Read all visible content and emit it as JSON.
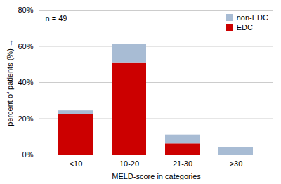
{
  "chart_data": {
    "type": "bar",
    "stacked": true,
    "categories": [
      "<10",
      "10-20",
      "21-30",
      ">30"
    ],
    "series": [
      {
        "name": "EDC",
        "color": "#cc0000",
        "values": [
          22.4,
          51.0,
          6.1,
          0.0
        ]
      },
      {
        "name": "non-EDC",
        "color": "#a8bcd4",
        "values": [
          2.0,
          10.2,
          4.9,
          4.1
        ]
      }
    ],
    "xlabel": "MELD-score in categories",
    "ylabel": "percent of patients (%)",
    "annotation": "n = 49",
    "ylim": [
      0,
      80
    ],
    "yticks": [
      {
        "value": 0,
        "label": "0%"
      },
      {
        "value": 20,
        "label": "20%"
      },
      {
        "value": 40,
        "label": "40%"
      },
      {
        "value": 60,
        "label": "60%"
      },
      {
        "value": 80,
        "label": "80%"
      }
    ],
    "grid": true,
    "legend": "upper right"
  }
}
